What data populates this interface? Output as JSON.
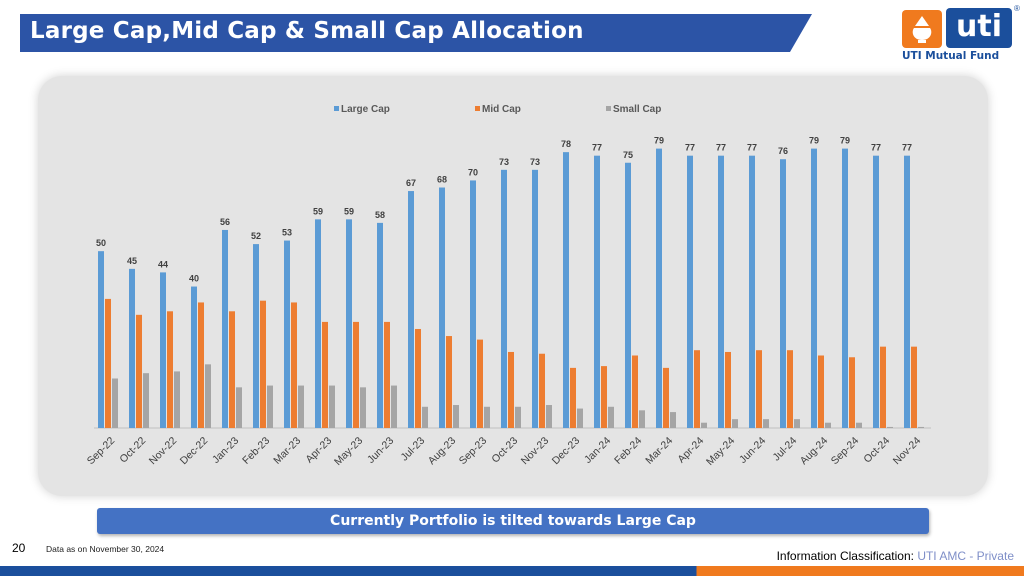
{
  "header": {
    "title": "Large Cap,Mid Cap & Small Cap Allocation",
    "bar_color": "#2c54a6"
  },
  "logo": {
    "word": "uti",
    "reg": "®",
    "subtitle": "UTI Mutual Fund",
    "brand_blue": "#1b4f9c",
    "brand_orange": "#f07a1e"
  },
  "chart_data": {
    "type": "bar",
    "legend_position": "top",
    "grid": false,
    "ylim": [
      0,
      82
    ],
    "categories": [
      "Sep-22",
      "Oct-22",
      "Nov-22",
      "Dec-22",
      "Jan-23",
      "Feb-23",
      "Mar-23",
      "Apr-23",
      "May-23",
      "Jun-23",
      "Jul-23",
      "Aug-23",
      "Sep-23",
      "Oct-23",
      "Nov-23",
      "Dec-23",
      "Jan-24",
      "Feb-24",
      "Mar-24",
      "Apr-24",
      "May-24",
      "Jun-24",
      "Jul-24",
      "Aug-24",
      "Sep-24",
      "Oct-24",
      "Nov-24"
    ],
    "series": [
      {
        "name": "Large Cap",
        "color": "#5b9bd5",
        "labeled": true,
        "values": [
          50,
          45,
          44,
          40,
          56,
          52,
          53,
          59,
          59,
          58,
          67,
          68,
          70,
          73,
          73,
          78,
          77,
          75,
          79,
          77,
          77,
          77,
          76,
          79,
          79,
          77,
          77
        ]
      },
      {
        "name": "Mid Cap",
        "color": "#ed7d31",
        "labeled": false,
        "values": [
          36.5,
          32,
          33,
          35.5,
          33,
          36,
          35.5,
          30,
          30,
          30,
          28,
          26,
          25,
          21.5,
          21,
          17,
          17.5,
          20.5,
          17,
          22,
          21.5,
          22,
          22,
          20.5,
          20,
          23,
          23
        ]
      },
      {
        "name": "Small Cap",
        "color": "#a5a5a5",
        "labeled": false,
        "values": [
          14,
          15.5,
          16,
          18,
          11.5,
          12,
          12,
          12,
          11.5,
          12,
          6,
          6.5,
          6,
          6,
          6.5,
          5.5,
          6,
          5,
          4.5,
          1.5,
          2.5,
          2.5,
          2.5,
          1.5,
          1.5,
          0.3,
          0.3
        ]
      }
    ]
  },
  "callout": {
    "text": "Currently Portfolio is tilted towards Large Cap"
  },
  "footer": {
    "page_number": "20",
    "data_date": "Data as on  November 30, 2024",
    "classification_label": "Information Classification: ",
    "classification_value": "UTI AMC - Private"
  }
}
